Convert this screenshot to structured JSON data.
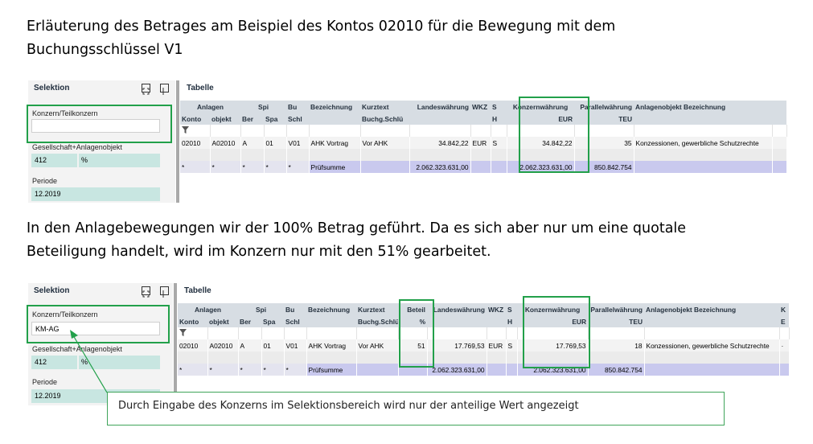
{
  "intro": {
    "line1": "Erläuterung des Betrages am Beispiel des Kontos 02010 für die Bewegung mit dem",
    "line2": "Buchungsschlüssel V1"
  },
  "middle": {
    "line1": "In den Anlagebewegungen wir der 100% Betrag geführt. Da es sich aber nur um eine quotale",
    "line2": "Beteiligung handelt, wird im Konzern nur mit den 51% gearbeitet."
  },
  "callout": "Durch Eingabe des Konzerns im Selektionsbereich wird nur der anteilige Wert angezeigt",
  "screen1": {
    "selection": {
      "title": "Selektion",
      "konzern_label": "Konzern/Teilkonzern",
      "konzern_value": "",
      "ges_label": "Gesellschaft+Anlagenobjekt",
      "ges_value": "412",
      "ges_suffix": "%",
      "periode_label": "Periode",
      "periode_value": "12.2019"
    },
    "table": {
      "title": "Tabelle",
      "header1": [
        "Anlagen",
        "Spi",
        "Bu",
        "Bezeichnung",
        "Kurztext",
        "Landeswährung",
        "WKZ",
        "S",
        "Konzernwährung",
        "Parallelwährung",
        "Anlagenobjekt Bezeichnung"
      ],
      "header2": [
        "Konto",
        "objekt",
        "Ber",
        "Spa",
        "Schl",
        "Buchg.Schlü",
        "H",
        "EUR",
        "TEU"
      ],
      "filter_icon": "filter-icon",
      "row": [
        "02010",
        "A02010",
        "A",
        "01",
        "V01",
        "AHK Vortrag",
        "Vor AHK",
        "34.842,22",
        "EUR",
        "S",
        "34.842,22",
        "35",
        "Konzessionen, gewerbliche Schutzrechte"
      ],
      "sum": [
        "*",
        "*",
        "*",
        "*",
        "*",
        "Prüfsumme",
        "2.062.323.631,00",
        "2.062.323.631,00",
        "850.842.754"
      ]
    }
  },
  "screen2": {
    "selection": {
      "title": "Selektion",
      "konzern_label": "Konzern/Teilkonzern",
      "konzern_value": "KM-AG",
      "ges_label": "Gesellschaft+Anlagenobjekt",
      "ges_value": "412",
      "ges_suffix": "%",
      "periode_label": "Periode",
      "periode_value": "12.2019"
    },
    "table": {
      "title": "Tabelle",
      "header1": [
        "Anlagen",
        "Spi",
        "Bu",
        "Bezeichnung",
        "Kurztext",
        "Beteil",
        "Landeswährung",
        "WKZ",
        "S",
        "Konzernwährung",
        "Parallelwährung",
        "Anlagenobjekt Bezeichnung",
        "K"
      ],
      "header2": [
        "Konto",
        "objekt",
        "Ber",
        "Spa",
        "Schl",
        "Buchg.Schlü",
        "%",
        "H",
        "EUR",
        "TEU",
        "E"
      ],
      "row": [
        "02010",
        "A02010",
        "A",
        "01",
        "V01",
        "AHK Vortrag",
        "Vor AHK",
        "51",
        "17.769,53",
        "EUR",
        "S",
        "17.769,53",
        "18",
        "Konzessionen, gewerbliche Schutzrechte",
        "·"
      ],
      "sum": [
        "*",
        "*",
        "*",
        "*",
        "*",
        "Prüfsumme",
        "2.062.323.631,00",
        "2.062.323.631,00",
        "850.842.754"
      ]
    }
  },
  "colors": {
    "highlight": "#22a04a",
    "header_bg": "#d7dde3",
    "teal_field": "#c8e6e1",
    "sum_violet": "#c9c9ee"
  }
}
